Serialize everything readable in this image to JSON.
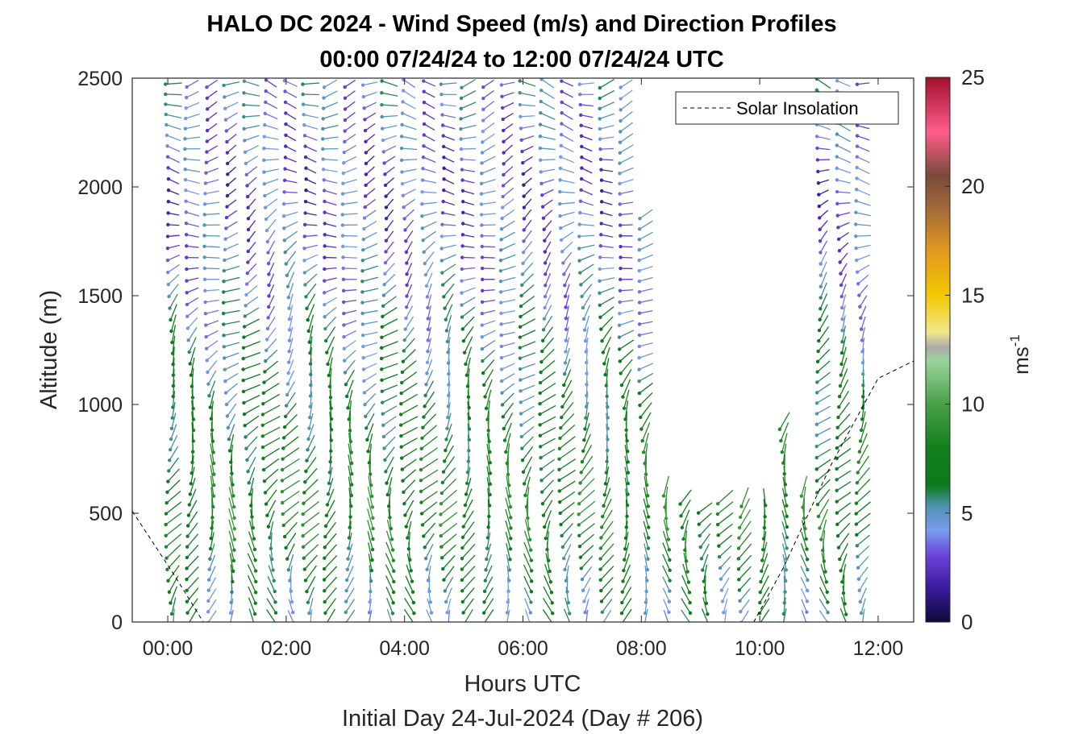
{
  "chart_data": {
    "type": "wind-barb-profile",
    "title": "HALO DC 2024 - Wind Speed (m/s) and Direction Profiles",
    "subtitle": "00:00 07/24/24 to 12:00 07/24/24  UTC",
    "xlabel": "Hours UTC",
    "xlabel2": "Initial Day 24-Jul-2024 (Day # 206)",
    "ylabel": "Altitude (m)",
    "xlim": [
      -0.6,
      12.6
    ],
    "ylim": [
      0,
      2500
    ],
    "xticks": [
      0,
      2,
      4,
      6,
      8,
      10,
      12
    ],
    "xtick_labels": [
      "00:00",
      "02:00",
      "04:00",
      "06:00",
      "08:00",
      "10:00",
      "12:00"
    ],
    "yticks": [
      0,
      500,
      1000,
      1500,
      2000,
      2500
    ],
    "ytick_labels": [
      "0",
      "500",
      "1000",
      "1500",
      "2000",
      "2500"
    ],
    "colorbar": {
      "label": "ms",
      "label_exp": "-1",
      "range": [
        0,
        25
      ],
      "ticks": [
        0,
        5,
        10,
        15,
        20,
        25
      ],
      "tick_labels": [
        "0",
        "5",
        "10",
        "15",
        "20",
        "25"
      ],
      "stops": [
        {
          "v": 0,
          "c": "#0d0a3a"
        },
        {
          "v": 1.5,
          "c": "#3a1a9a"
        },
        {
          "v": 3,
          "c": "#6a40d8"
        },
        {
          "v": 4.2,
          "c": "#7a9cf0"
        },
        {
          "v": 5.3,
          "c": "#4f93b0"
        },
        {
          "v": 6.3,
          "c": "#0c7a1c"
        },
        {
          "v": 8,
          "c": "#14801c"
        },
        {
          "v": 10,
          "c": "#48a048"
        },
        {
          "v": 12,
          "c": "#9cd49c"
        },
        {
          "v": 12.6,
          "c": "#aaaaaa"
        },
        {
          "v": 13.3,
          "c": "#f2e88c"
        },
        {
          "v": 15,
          "c": "#f2c800"
        },
        {
          "v": 17,
          "c": "#e39a1e"
        },
        {
          "v": 19,
          "c": "#a06a3a"
        },
        {
          "v": 20.5,
          "c": "#7a4a3a"
        },
        {
          "v": 22.5,
          "c": "#ff5c8c"
        },
        {
          "v": 25,
          "c": "#a0102a"
        }
      ]
    },
    "legend": {
      "label": "Solar Insolation",
      "position": "top-right",
      "style": "dashed"
    },
    "solar_insolation": {
      "style": "dashed",
      "points": [
        [
          -0.6,
          510
        ],
        [
          0.1,
          220
        ],
        [
          0.6,
          0
        ],
        [
          9.9,
          0
        ],
        [
          10.4,
          250
        ],
        [
          11.2,
          720
        ],
        [
          12.0,
          1120
        ],
        [
          12.6,
          1200
        ]
      ]
    },
    "profiles": {
      "times": [
        0.1,
        0.42,
        0.75,
        1.08,
        1.42,
        1.75,
        2.08,
        2.42,
        2.75,
        3.08,
        3.42,
        3.75,
        4.08,
        4.42,
        4.75,
        5.08,
        5.42,
        5.75,
        6.08,
        6.42,
        6.75,
        7.08,
        7.42,
        7.75,
        8.08,
        8.42,
        8.75,
        9.08,
        9.42,
        9.75,
        10.08,
        10.42,
        10.75,
        11.08,
        11.42,
        11.75
      ],
      "tops": [
        2500,
        2500,
        2500,
        2500,
        2500,
        2500,
        2500,
        2500,
        2500,
        2500,
        2500,
        2500,
        2500,
        2500,
        2500,
        2500,
        2500,
        2500,
        2500,
        2500,
        2500,
        2500,
        2500,
        2500,
        1900,
        650,
        580,
        540,
        590,
        600,
        620,
        960,
        640,
        2500,
        2500,
        2500
      ],
      "altitude_step": 50,
      "speed_profile": [
        {
          "alt": 0,
          "speed": 5.0,
          "dir": 180
        },
        {
          "alt": 500,
          "speed": 8.0,
          "dir": 200
        },
        {
          "alt": 1000,
          "speed": 6.5,
          "dir": 210
        },
        {
          "alt": 1500,
          "speed": 4.5,
          "dir": 230
        },
        {
          "alt": 2000,
          "speed": 3.0,
          "dir": 260
        },
        {
          "alt": 2500,
          "speed": 4.5,
          "dir": 270
        }
      ]
    }
  }
}
